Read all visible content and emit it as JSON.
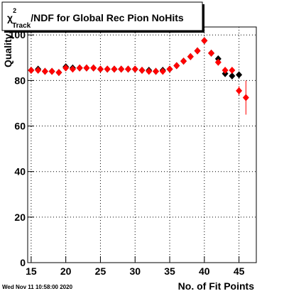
{
  "chart_data": {
    "type": "scatter",
    "title": {
      "symbol": "χ",
      "sup": "2",
      "sub": "Track",
      "text": "/NDF for Global Rec Pion NoHits"
    },
    "x_label": "No. of Fit Points",
    "y_label": "Quality",
    "footer": "Wed Nov 11 10:58:00 2020",
    "x": [
      15,
      16,
      17,
      18,
      19,
      20,
      21,
      22,
      23,
      24,
      25,
      26,
      27,
      28,
      29,
      30,
      31,
      32,
      33,
      34,
      35,
      36,
      37,
      38,
      39,
      40,
      41,
      42,
      43,
      44,
      45,
      46
    ],
    "series": [
      {
        "name": "black",
        "color": "#000000",
        "values": [
          84.5,
          85,
          84,
          84,
          83.5,
          86,
          85.5,
          85.5,
          85.5,
          85.5,
          85,
          85,
          85,
          85,
          85,
          85,
          84.5,
          84.5,
          84,
          84.5,
          85,
          86.5,
          88.5,
          90.5,
          93,
          97.5,
          92,
          89.5,
          83,
          82,
          82.5,
          null
        ]
      },
      {
        "name": "red",
        "color": "#ff0000",
        "values": [
          84.5,
          84.5,
          84,
          84,
          83.5,
          85.5,
          85,
          85.5,
          85.5,
          85.5,
          85,
          85,
          85,
          85,
          85,
          85,
          84.5,
          84,
          84,
          84,
          85,
          86.5,
          88.5,
          90.5,
          93,
          97.5,
          92,
          88,
          84.5,
          84.5,
          75.5,
          72.5
        ],
        "errors": [
          null,
          null,
          null,
          null,
          null,
          null,
          null,
          null,
          null,
          null,
          null,
          null,
          null,
          null,
          null,
          null,
          null,
          null,
          null,
          null,
          null,
          null,
          null,
          null,
          null,
          null,
          null,
          null,
          null,
          null,
          2,
          7.5
        ]
      }
    ],
    "xlim": [
      14.5,
      47.5
    ],
    "ylim": [
      0,
      103.5
    ],
    "xticks": [
      15,
      20,
      25,
      30,
      35,
      40,
      45
    ],
    "yticks": [
      0,
      20,
      40,
      60,
      80,
      100
    ],
    "grid": true
  }
}
